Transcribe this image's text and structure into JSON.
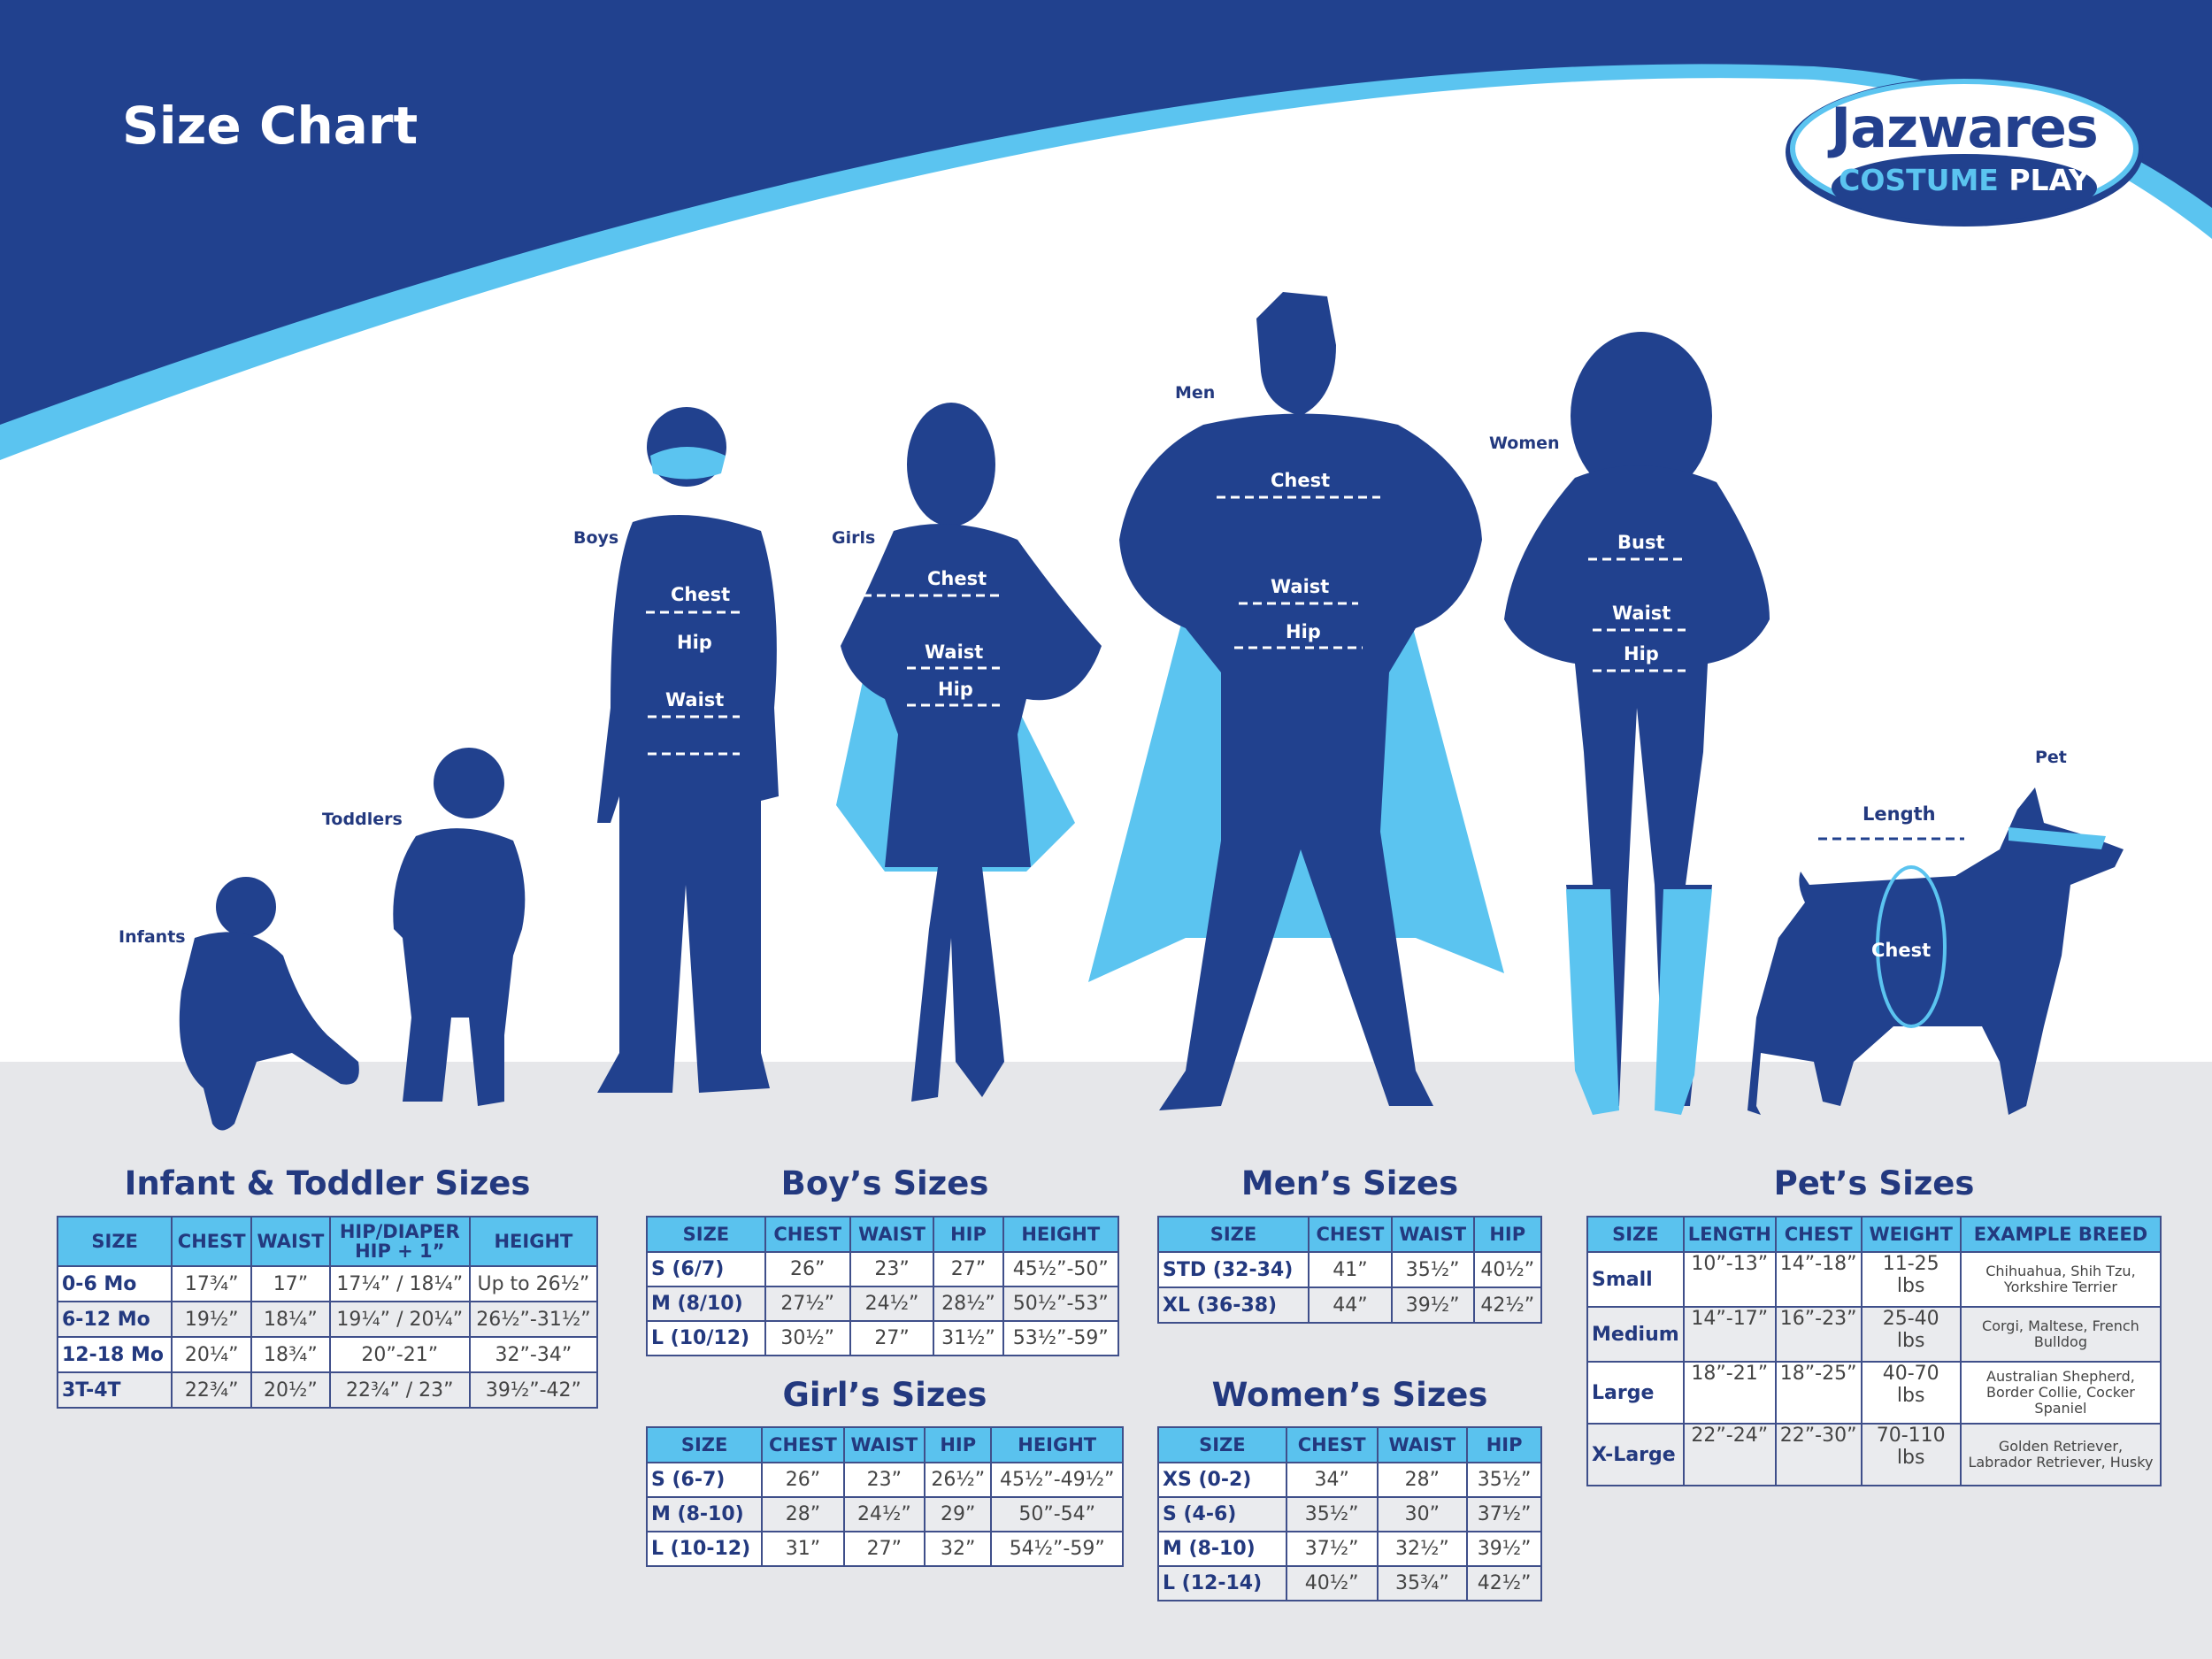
{
  "header": {
    "title": "Size Chart"
  },
  "logo": {
    "brand": "Jazwares",
    "sub_1": "COSTUME",
    "sub_2": "PLAY"
  },
  "colors": {
    "dark_blue": "#21418e",
    "light_blue": "#5bc4f0",
    "ground": "#e6e7ea",
    "title_text": "#23397f"
  },
  "figures": {
    "infants": "Infants",
    "toddlers": "Toddlers",
    "boys": {
      "label": "Boys",
      "chest": "Chest",
      "hip": "Hip",
      "waist": "Waist"
    },
    "girls": {
      "label": "Girls",
      "chest": "Chest",
      "waist": "Waist",
      "hip": "Hip"
    },
    "men": {
      "label": "Men",
      "chest": "Chest",
      "waist": "Waist",
      "hip": "Hip"
    },
    "women": {
      "label": "Women",
      "bust": "Bust",
      "waist": "Waist",
      "hip": "Hip"
    },
    "pet": {
      "label": "Pet",
      "length": "Length",
      "chest": "Chest"
    }
  },
  "tables": {
    "infant": {
      "title": "Infant & Toddler Sizes",
      "headers": [
        "SIZE",
        "CHEST",
        "WAIST",
        "HIP/DIAPER\nHIP + 1”",
        "HEIGHT"
      ],
      "rows": [
        [
          "0-6 Mo",
          "17¾”",
          "17”",
          "17¼” / 18¼”",
          "Up to 26½”"
        ],
        [
          "6-12 Mo",
          "19½”",
          "18¼”",
          "19¼” / 20¼”",
          "26½”-31½”"
        ],
        [
          "12-18 Mo",
          "20¼”",
          "18¾”",
          "20”-21”",
          "32”-34”"
        ],
        [
          "3T-4T",
          "22¾”",
          "20½”",
          "22¾” / 23”",
          "39½”-42”"
        ]
      ]
    },
    "boys": {
      "title": "Boy’s Sizes",
      "headers": [
        "SIZE",
        "CHEST",
        "WAIST",
        "HIP",
        "HEIGHT"
      ],
      "rows": [
        [
          "S (6/7)",
          "26”",
          "23”",
          "27”",
          "45½”-50”"
        ],
        [
          "M (8/10)",
          "27½”",
          "24½”",
          "28½”",
          "50½”-53”"
        ],
        [
          "L (10/12)",
          "30½”",
          "27”",
          "31½”",
          "53½”-59”"
        ]
      ]
    },
    "girls": {
      "title": "Girl’s Sizes",
      "headers": [
        "SIZE",
        "CHEST",
        "WAIST",
        "HIP",
        "HEIGHT"
      ],
      "rows": [
        [
          "S (6-7)",
          "26”",
          "23”",
          "26½”",
          "45½”-49½”"
        ],
        [
          "M (8-10)",
          "28”",
          "24½”",
          "29”",
          "50”-54”"
        ],
        [
          "L (10-12)",
          "31”",
          "27”",
          "32”",
          "54½”-59”"
        ]
      ]
    },
    "men": {
      "title": "Men’s Sizes",
      "headers": [
        "SIZE",
        "CHEST",
        "WAIST",
        "HIP"
      ],
      "rows": [
        [
          "STD (32-34)",
          "41”",
          "35½”",
          "40½”"
        ],
        [
          "XL (36-38)",
          "44”",
          "39½”",
          "42½”"
        ]
      ]
    },
    "women": {
      "title": "Women’s Sizes",
      "headers": [
        "SIZE",
        "CHEST",
        "WAIST",
        "HIP"
      ],
      "rows": [
        [
          "XS (0-2)",
          "34”",
          "28”",
          "35½”"
        ],
        [
          "S (4-6)",
          "35½”",
          "30”",
          "37½”"
        ],
        [
          "M (8-10)",
          "37½”",
          "32½”",
          "39½”"
        ],
        [
          "L (12-14)",
          "40½”",
          "35¾”",
          "42½”"
        ]
      ]
    },
    "pets": {
      "title": "Pet’s Sizes",
      "headers": [
        "SIZE",
        "LENGTH",
        "CHEST",
        "WEIGHT",
        "EXAMPLE BREED"
      ],
      "rows": [
        [
          "Small",
          "10”-13”",
          "14”-18”",
          "11-25 lbs",
          "Chihuahua, Shih Tzu, Yorkshire Terrier"
        ],
        [
          "Medium",
          "14”-17”",
          "16”-23”",
          "25-40 lbs",
          "Corgi, Maltese, French Bulldog"
        ],
        [
          "Large",
          "18”-21”",
          "18”-25”",
          "40-70 lbs",
          "Australian Shepherd, Border Collie, Cocker Spaniel"
        ],
        [
          "X-Large",
          "22”-24”",
          "22”-30”",
          "70-110 lbs",
          "Golden Retriever, Labrador Retriever, Husky"
        ]
      ]
    }
  }
}
